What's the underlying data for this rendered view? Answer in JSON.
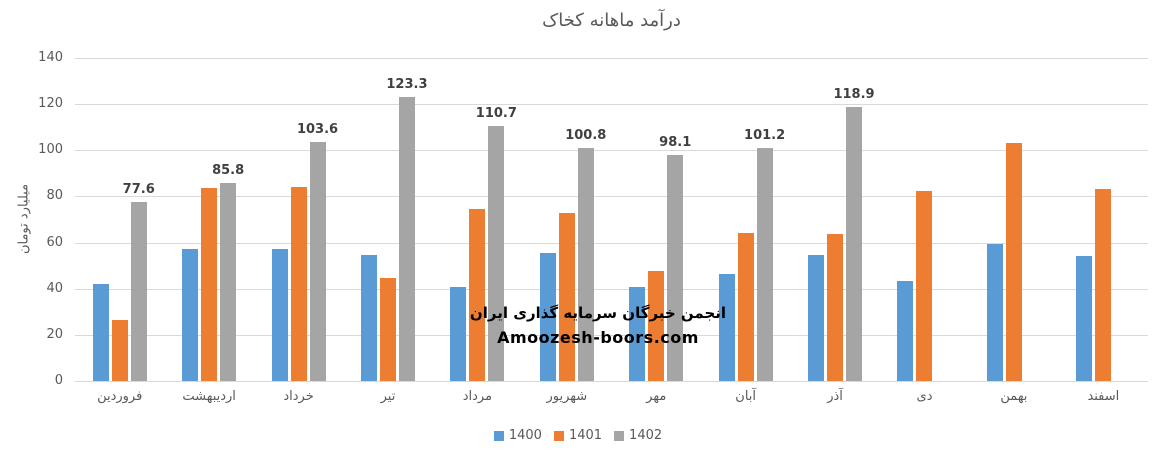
{
  "chart": {
    "title": "درآمد ماهانه کخاک",
    "ylabel": "میلیارد تومان"
  },
  "watermark": {
    "line1": "انجمن خبرگان سرمایه گذاری ایران",
    "line2": "Amoozesh-boors.com"
  },
  "legend": {
    "items": [
      "1400",
      "1401",
      "1402"
    ]
  },
  "chart_data": {
    "type": "bar",
    "title": "درآمد ماهانه کخاک",
    "xlabel": "",
    "ylabel": "میلیارد تومان",
    "ylim": [
      0,
      140
    ],
    "yticks": [
      0,
      20,
      40,
      60,
      80,
      100,
      120,
      140
    ],
    "grid": "horizontal-only",
    "gridline_color": "#d9d9d9",
    "legend_position": "bottom-center",
    "categories": [
      "فروردین",
      "اردیبهشت",
      "خرداد",
      "تیر",
      "مرداد",
      "شهریور",
      "مهر",
      "آبان",
      "آذر",
      "دی",
      "بهمن",
      "اسفند"
    ],
    "series": [
      {
        "name": "1400",
        "color": "#5B9BD5",
        "data_labels": false,
        "values": [
          42,
          57,
          57.4,
          54.8,
          40.8,
          55.6,
          40.7,
          46.5,
          54.8,
          43.3,
          59.2,
          54.3
        ]
      },
      {
        "name": "1401",
        "color": "#ED7D31",
        "data_labels": false,
        "values": [
          26.3,
          83.5,
          84,
          44.6,
          74.5,
          73,
          47.8,
          64.3,
          63.5,
          82.2,
          103.3,
          83.4
        ]
      },
      {
        "name": "1402",
        "color": "#A5A5A5",
        "data_labels": true,
        "labeled_values": [
          "77.6",
          "85.8",
          "103.6",
          "123.3",
          "110.7",
          "100.8",
          "98.1",
          "101.2",
          "118.9"
        ],
        "values": [
          77.6,
          85.8,
          103.6,
          123.3,
          110.7,
          100.8,
          98.1,
          101.2,
          118.9,
          null,
          null,
          null
        ]
      }
    ]
  }
}
